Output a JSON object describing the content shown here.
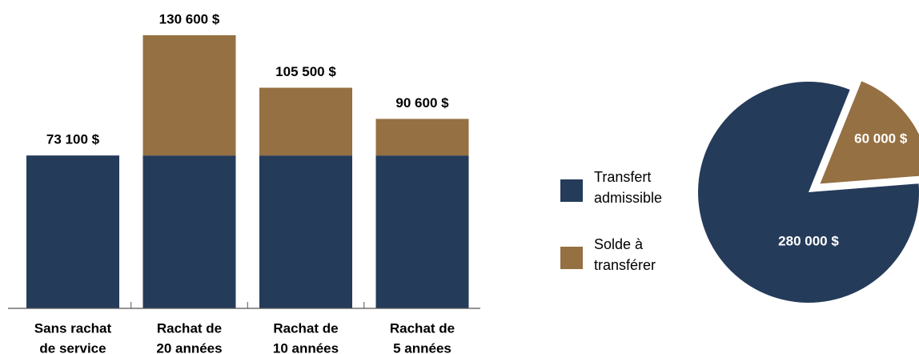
{
  "chart_data": [
    {
      "type": "stacked_bar",
      "categories": [
        [
          "Sans rachat",
          "de service"
        ],
        [
          "Rachat de",
          "20 années"
        ],
        [
          "Rachat de",
          "10 années"
        ],
        [
          "Rachat de",
          "5 années"
        ]
      ],
      "series": [
        {
          "name": "Transfert admissible",
          "color": "#253b5a",
          "values": [
            73100,
            73100,
            73100,
            73100
          ]
        },
        {
          "name": "Solde à transférer",
          "color": "#957042",
          "values": [
            0,
            57500,
            32400,
            17500
          ]
        }
      ],
      "totals": [
        73100,
        130600,
        105500,
        90600
      ],
      "total_labels": [
        "73 100 $",
        "130 600 $",
        "105 500 $",
        "90 600 $"
      ]
    },
    {
      "type": "pie",
      "values": [
        60000,
        280000
      ],
      "value_labels": [
        "60 000 $",
        "280 000 $"
      ],
      "colors": [
        "#957042",
        "#253b5a"
      ]
    }
  ]
}
